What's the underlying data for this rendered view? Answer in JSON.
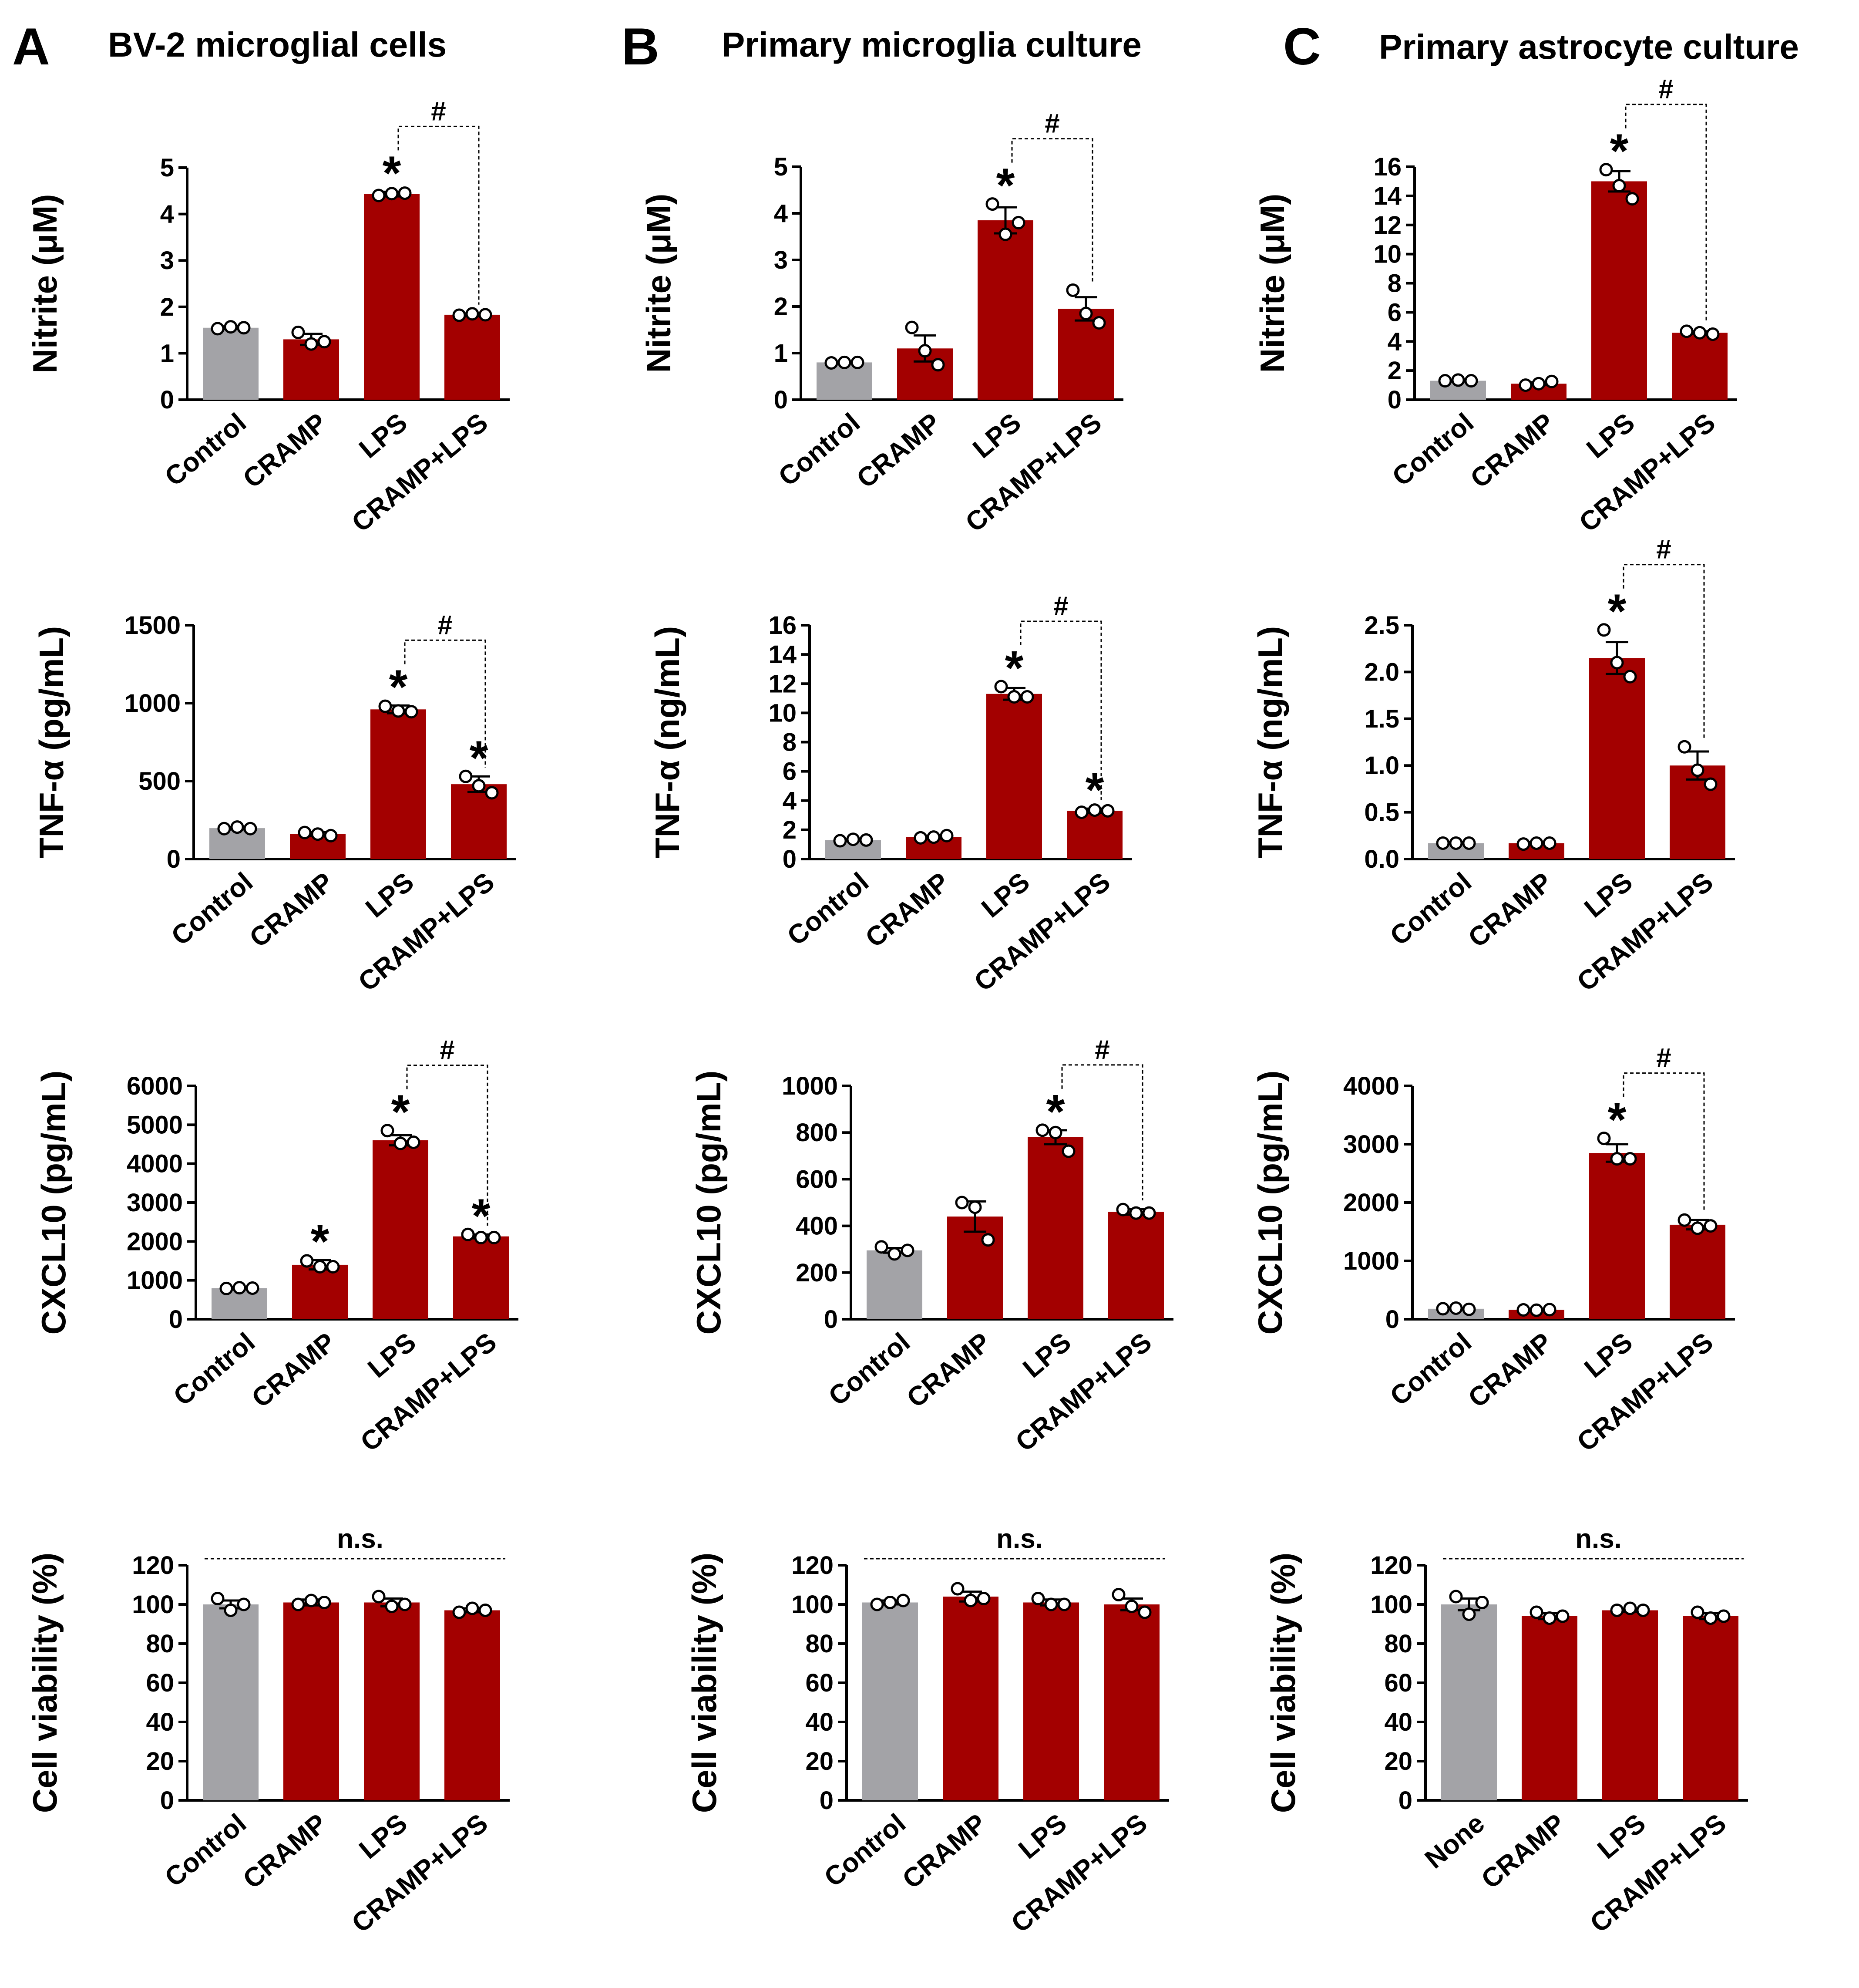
{
  "panels": [
    {
      "letter": "A",
      "title": "BV-2 microglial cells"
    },
    {
      "letter": "B",
      "title": "Primary microglia culture"
    },
    {
      "letter": "C",
      "title": "Primary astrocyte culture"
    }
  ],
  "colors": {
    "control_bar": "#a3a3a7",
    "treatment_bar": "#a30000",
    "points": "#ffffff",
    "axis": "#000000"
  },
  "chart_data": [
    {
      "id": "A-nitrite",
      "type": "bar",
      "panel": "A",
      "ylabel": "Nitrite (μM)",
      "ylim": [
        0,
        5
      ],
      "yticks": [
        "0",
        "1",
        "2",
        "3",
        "4",
        "5"
      ],
      "categories": [
        "Control",
        "CRAMP",
        "LPS",
        "CRAMP+LPS"
      ],
      "values": [
        1.55,
        1.3,
        4.43,
        1.83
      ],
      "errors": [
        0.03,
        0.12,
        0.05,
        0.03
      ],
      "points": [
        [
          1.53,
          1.57,
          1.55
        ],
        [
          1.45,
          1.2,
          1.25
        ],
        [
          4.4,
          4.44,
          4.45
        ],
        [
          1.82,
          1.85,
          1.83
        ]
      ],
      "stars": [
        2
      ],
      "hash": [
        2,
        3
      ],
      "ns": false
    },
    {
      "id": "A-tnf",
      "type": "bar",
      "panel": "A",
      "ylabel": "TNF-α (pg/mL)",
      "ylim": [
        0,
        1500
      ],
      "yticks": [
        "0",
        "500",
        "1000",
        "1500"
      ],
      "categories": [
        "Control",
        "CRAMP",
        "LPS",
        "CRAMP+LPS"
      ],
      "values": [
        198,
        160,
        960,
        480
      ],
      "errors": [
        8,
        12,
        25,
        50
      ],
      "points": [
        [
          195,
          205,
          195
        ],
        [
          170,
          160,
          150
        ],
        [
          980,
          950,
          945
        ],
        [
          530,
          470,
          425
        ]
      ],
      "stars": [
        2,
        3
      ],
      "hash": [
        2,
        3
      ],
      "ns": false
    },
    {
      "id": "A-cxcl10",
      "type": "bar",
      "panel": "A",
      "ylabel": "CXCL10 (pg/mL)",
      "ylim": [
        0,
        6000
      ],
      "yticks": [
        "0",
        "1000",
        "2000",
        "3000",
        "4000",
        "5000",
        "6000"
      ],
      "categories": [
        "Control",
        "CRAMP",
        "LPS",
        "CRAMP+LPS"
      ],
      "values": [
        800,
        1400,
        4600,
        2130
      ],
      "errors": [
        30,
        120,
        130,
        50
      ],
      "points": [
        [
          790,
          810,
          800
        ],
        [
          1500,
          1350,
          1350
        ],
        [
          4850,
          4520,
          4550
        ],
        [
          2180,
          2100,
          2100
        ]
      ],
      "stars": [
        1,
        2,
        3
      ],
      "hash": [
        2,
        3
      ],
      "ns": false
    },
    {
      "id": "A-viability",
      "type": "bar",
      "panel": "A",
      "ylabel": "Cell viability (%)",
      "ylim": [
        0,
        120
      ],
      "yticks": [
        "0",
        "20",
        "40",
        "60",
        "80",
        "100",
        "120"
      ],
      "categories": [
        "Control",
        "CRAMP",
        "LPS",
        "CRAMP+LPS"
      ],
      "values": [
        100,
        101,
        101,
        97
      ],
      "errors": [
        2,
        1.5,
        2,
        1
      ],
      "points": [
        [
          103,
          97,
          100
        ],
        [
          100,
          102,
          101
        ],
        [
          104,
          99,
          100
        ],
        [
          96,
          98,
          97
        ]
      ],
      "stars": [],
      "hash": null,
      "ns": true,
      "ns_label": "n.s."
    },
    {
      "id": "B-nitrite",
      "type": "bar",
      "panel": "B",
      "ylabel": "Nitrite (μM)",
      "ylim": [
        0,
        5
      ],
      "yticks": [
        "0",
        "1",
        "2",
        "3",
        "4",
        "5"
      ],
      "categories": [
        "Control",
        "CRAMP",
        "LPS",
        "CRAMP+LPS"
      ],
      "values": [
        0.8,
        1.1,
        3.85,
        1.95
      ],
      "errors": [
        0.02,
        0.28,
        0.28,
        0.25
      ],
      "points": [
        [
          0.79,
          0.8,
          0.8
        ],
        [
          1.55,
          1.05,
          0.75
        ],
        [
          4.2,
          3.55,
          3.8
        ],
        [
          2.35,
          1.85,
          1.65
        ]
      ],
      "stars": [
        2
      ],
      "hash": [
        2,
        3
      ],
      "ns": false
    },
    {
      "id": "B-tnf",
      "type": "bar",
      "panel": "B",
      "ylabel": "TNF-α (ng/mL)",
      "ylim": [
        0,
        16
      ],
      "yticks": [
        "0",
        "2",
        "4",
        "6",
        "8",
        "10",
        "12",
        "14",
        "16"
      ],
      "categories": [
        "Control",
        "CRAMP",
        "LPS",
        "CRAMP+LPS"
      ],
      "values": [
        1.3,
        1.5,
        11.3,
        3.3
      ],
      "errors": [
        0.05,
        0.1,
        0.4,
        0.15
      ],
      "points": [
        [
          1.25,
          1.35,
          1.3
        ],
        [
          1.45,
          1.5,
          1.6
        ],
        [
          11.8,
          11.1,
          11.1
        ],
        [
          3.2,
          3.35,
          3.3
        ]
      ],
      "stars": [
        2,
        3
      ],
      "hash": [
        2,
        3
      ],
      "ns": false
    },
    {
      "id": "B-cxcl10",
      "type": "bar",
      "panel": "B",
      "ylabel": "CXCL10 (pg/mL)",
      "ylim": [
        0,
        1000
      ],
      "yticks": [
        "0",
        "200",
        "400",
        "600",
        "800",
        "1000"
      ],
      "categories": [
        "Control",
        "CRAMP",
        "LPS",
        "CRAMP+LPS"
      ],
      "values": [
        295,
        440,
        780,
        460
      ],
      "errors": [
        10,
        65,
        30,
        12
      ],
      "points": [
        [
          310,
          280,
          295
        ],
        [
          500,
          480,
          340
        ],
        [
          810,
          800,
          720
        ],
        [
          470,
          455,
          455
        ]
      ],
      "stars": [
        2
      ],
      "hash": [
        2,
        3
      ],
      "ns": false
    },
    {
      "id": "B-viability",
      "type": "bar",
      "panel": "B",
      "ylabel": "Cell viability (%)",
      "ylim": [
        0,
        120
      ],
      "yticks": [
        "0",
        "20",
        "40",
        "60",
        "80",
        "100",
        "120"
      ],
      "categories": [
        "Control",
        "CRAMP",
        "LPS",
        "CRAMP+LPS"
      ],
      "values": [
        101,
        104,
        101,
        100
      ],
      "errors": [
        1,
        2.5,
        1.5,
        3
      ],
      "points": [
        [
          100,
          101,
          102
        ],
        [
          108,
          102,
          103
        ],
        [
          103,
          100,
          100
        ],
        [
          105,
          99,
          96
        ]
      ],
      "stars": [],
      "hash": null,
      "ns": true,
      "ns_label": "n.s."
    },
    {
      "id": "C-nitrite",
      "type": "bar",
      "panel": "C",
      "ylabel": "Nitrite (μM)",
      "ylim": [
        0,
        16
      ],
      "yticks": [
        "0",
        "2",
        "4",
        "6",
        "8",
        "10",
        "12",
        "14",
        "16"
      ],
      "categories": [
        "Control",
        "CRAMP",
        "LPS",
        "CRAMP+LPS"
      ],
      "values": [
        1.3,
        1.1,
        15.0,
        4.6
      ],
      "errors": [
        0.05,
        0.1,
        0.7,
        0.1
      ],
      "points": [
        [
          1.3,
          1.35,
          1.3
        ],
        [
          1.0,
          1.1,
          1.25
        ],
        [
          15.8,
          14.7,
          13.8
        ],
        [
          4.7,
          4.6,
          4.5
        ]
      ],
      "stars": [
        2
      ],
      "hash": [
        2,
        3
      ],
      "ns": false
    },
    {
      "id": "C-tnf",
      "type": "bar",
      "panel": "C",
      "ylabel": "TNF-α (ng/mL)",
      "ylim": [
        0,
        2.5
      ],
      "yticks": [
        "0.0",
        "0.5",
        "1.0",
        "1.5",
        "2.0",
        "2.5"
      ],
      "categories": [
        "Control",
        "CRAMP",
        "LPS",
        "CRAMP+LPS"
      ],
      "values": [
        0.17,
        0.17,
        2.15,
        1.0
      ],
      "errors": [
        0.01,
        0.01,
        0.17,
        0.15
      ],
      "points": [
        [
          0.17,
          0.17,
          0.17
        ],
        [
          0.16,
          0.17,
          0.17
        ],
        [
          2.45,
          2.1,
          1.95
        ],
        [
          1.2,
          0.95,
          0.8
        ]
      ],
      "stars": [
        2
      ],
      "hash": [
        2,
        3
      ],
      "ns": false
    },
    {
      "id": "C-cxcl10",
      "type": "bar",
      "panel": "C",
      "ylabel": "CXCL10 (pg/mL)",
      "ylim": [
        0,
        4000
      ],
      "yticks": [
        "0",
        "1000",
        "2000",
        "3000",
        "4000"
      ],
      "categories": [
        "Control",
        "CRAMP",
        "LPS",
        "CRAMP+LPS"
      ],
      "values": [
        180,
        160,
        2850,
        1620
      ],
      "errors": [
        10,
        10,
        150,
        80
      ],
      "points": [
        [
          180,
          190,
          170
        ],
        [
          160,
          155,
          165
        ],
        [
          3100,
          2750,
          2750
        ],
        [
          1700,
          1560,
          1600
        ]
      ],
      "stars": [
        2
      ],
      "hash": [
        2,
        3
      ],
      "ns": false
    },
    {
      "id": "C-viability",
      "type": "bar",
      "panel": "C",
      "ylabel": "Cell viability (%)",
      "ylim": [
        0,
        120
      ],
      "yticks": [
        "0",
        "20",
        "40",
        "60",
        "80",
        "100",
        "120"
      ],
      "categories": [
        "None",
        "CRAMP",
        "LPS",
        "CRAMP+LPS"
      ],
      "values": [
        100,
        94,
        97,
        94
      ],
      "errors": [
        3,
        1.5,
        0.8,
        1.5
      ],
      "points": [
        [
          104,
          95,
          101
        ],
        [
          96,
          93,
          94
        ],
        [
          97,
          98,
          97
        ],
        [
          96,
          93,
          94
        ]
      ],
      "stars": [],
      "hash": null,
      "ns": true,
      "ns_label": "n.s."
    }
  ],
  "symbols": {
    "star": "*",
    "hash": "#"
  }
}
